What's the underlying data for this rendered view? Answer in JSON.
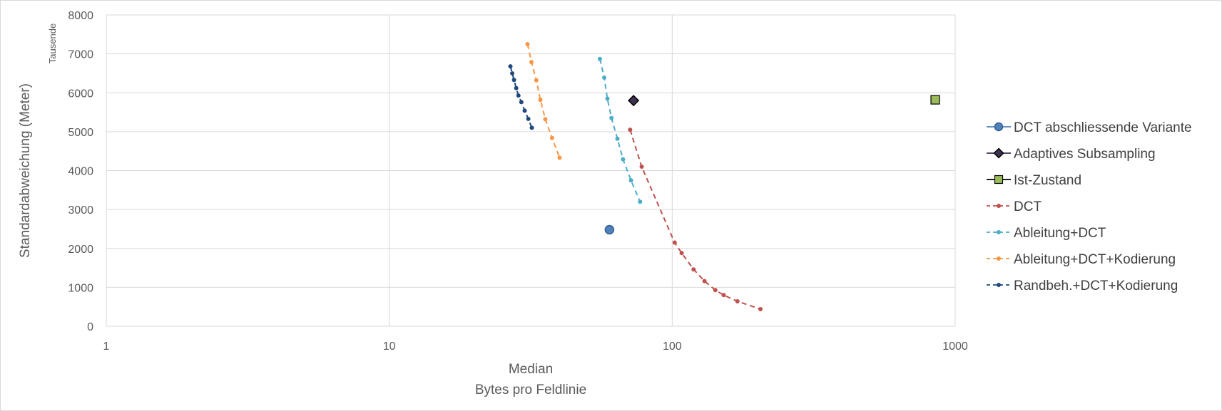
{
  "chart_data": {
    "type": "scatter",
    "title": "",
    "xlabel_line1": "Median",
    "xlabel_line2": "Bytes pro Feldlinie",
    "ylabel": "Standardabweichung (Meter)",
    "y_unit_label": "Tausende",
    "x_scale": "log",
    "xlim": [
      1,
      1000
    ],
    "ylim": [
      0,
      8000
    ],
    "x_ticks": [
      1,
      10,
      100,
      1000
    ],
    "x_tick_labels": [
      "1",
      "10",
      "100",
      "1000"
    ],
    "y_ticks": [
      0,
      1000,
      2000,
      3000,
      4000,
      5000,
      6000,
      7000,
      8000
    ],
    "y_tick_labels": [
      "0",
      "1000",
      "2000",
      "3000",
      "4000",
      "5000",
      "6000",
      "7000",
      "8000"
    ],
    "grid": true,
    "legend_position": "right",
    "series": [
      {
        "name": "DCT abschliessende Variante",
        "style": "marker",
        "marker": "circle",
        "color": "#4f81bd",
        "stroke": "#385d8a",
        "x": [
          60
        ],
        "y": [
          2480
        ]
      },
      {
        "name": "Adaptives Subsampling",
        "style": "marker",
        "marker": "diamond",
        "color": "#403152",
        "stroke": "#000000",
        "x": [
          73
        ],
        "y": [
          5800
        ]
      },
      {
        "name": "Ist-Zustand",
        "style": "marker",
        "marker": "square",
        "color": "#9bbb59",
        "stroke": "#000000",
        "x": [
          850
        ],
        "y": [
          5820
        ]
      },
      {
        "name": "DCT",
        "style": "dashed",
        "marker": "dot",
        "color": "#c0504d",
        "x": [
          71,
          78,
          102,
          108,
          119,
          130,
          142,
          152,
          170,
          205
        ],
        "y": [
          5050,
          4100,
          2150,
          1880,
          1460,
          1160,
          930,
          800,
          640,
          440
        ]
      },
      {
        "name": "Ableitung+DCT",
        "style": "dashed",
        "marker": "dot",
        "color": "#4bacc6",
        "x": [
          55.5,
          57.5,
          59,
          61,
          64,
          67,
          71.5,
          77
        ],
        "y": [
          6870,
          6390,
          5850,
          5350,
          4820,
          4290,
          3750,
          3200
        ]
      },
      {
        "name": "Ableitung+DCT+Kodierung",
        "style": "dashed",
        "marker": "dot",
        "color": "#f79646",
        "x": [
          30.8,
          31.8,
          33.1,
          34.2,
          35.6,
          37.6,
          40
        ],
        "y": [
          7250,
          6790,
          6320,
          5820,
          5320,
          4840,
          4330
        ]
      },
      {
        "name": "Randbeh.+DCT+Kodierung",
        "style": "dashed",
        "marker": "dot",
        "color": "#1f497d",
        "x": [
          26.8,
          27.2,
          27.6,
          28.1,
          28.6,
          29.3,
          30.1,
          31,
          31.9
        ],
        "y": [
          6680,
          6500,
          6330,
          6120,
          5930,
          5760,
          5540,
          5330,
          5100
        ]
      }
    ]
  }
}
